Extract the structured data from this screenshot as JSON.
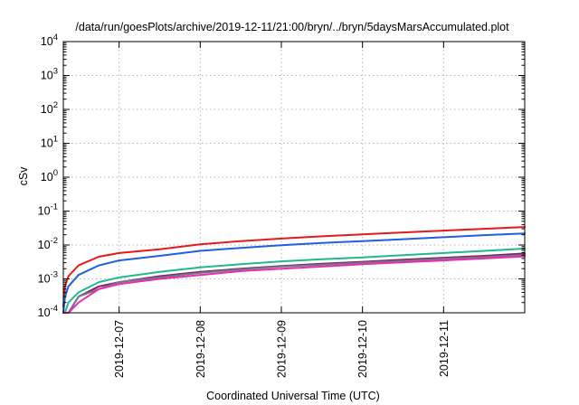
{
  "chart_data": {
    "type": "line",
    "title": "/data/run/goesPlots/archive/2019-12-11/21:00/bryn/../bryn/5daysMarsAccumulated.plot",
    "xlabel": "Coordinated Universal Time (UTC)",
    "ylabel": "cSv",
    "x_axis": "date",
    "xlim": [
      "2019-12-06T07:30",
      "2019-12-12T00:00"
    ],
    "x_ticks": [
      "2019-12-07",
      "2019-12-08",
      "2019-12-09",
      "2019-12-10",
      "2019-12-11"
    ],
    "y_scale": "log",
    "ylim": [
      0.0001,
      10000
    ],
    "y_ticks": [
      {
        "base": "10",
        "exp": "-4"
      },
      {
        "base": "10",
        "exp": "-3"
      },
      {
        "base": "10",
        "exp": "-2"
      },
      {
        "base": "10",
        "exp": "-1"
      },
      {
        "base": "10",
        "exp": "0"
      },
      {
        "base": "10",
        "exp": "1"
      },
      {
        "base": "10",
        "exp": "2"
      },
      {
        "base": "10",
        "exp": "3"
      },
      {
        "base": "10",
        "exp": "4"
      }
    ],
    "grid": true,
    "legend": "none",
    "x": [
      "2019-12-06T07:30",
      "2019-12-06T08:00",
      "2019-12-06T09:00",
      "2019-12-06T12:00",
      "2019-12-06T18:00",
      "2019-12-07T00:00",
      "2019-12-07T12:00",
      "2019-12-08T00:00",
      "2019-12-08T12:00",
      "2019-12-09T00:00",
      "2019-12-09T12:00",
      "2019-12-10T00:00",
      "2019-12-10T12:00",
      "2019-12-11T00:00",
      "2019-12-11T12:00",
      "2019-12-12T00:00"
    ],
    "series": [
      {
        "color": "#e41a1c",
        "values": [
          0.00015,
          0.0006,
          0.0012,
          0.0025,
          0.0045,
          0.0058,
          0.0075,
          0.0105,
          0.013,
          0.0155,
          0.018,
          0.0205,
          0.0235,
          0.0265,
          0.03,
          0.034
        ]
      },
      {
        "color": "#1f5fe0",
        "values": [
          0.0001,
          0.0003,
          0.0006,
          0.0013,
          0.0025,
          0.0035,
          0.0048,
          0.0067,
          0.0082,
          0.0098,
          0.0115,
          0.013,
          0.0148,
          0.017,
          0.0195,
          0.022
        ]
      },
      {
        "color": "#20b890",
        "values": [
          0.0001,
          0.0001,
          0.0002,
          0.0004,
          0.0008,
          0.0011,
          0.0016,
          0.0022,
          0.0027,
          0.0033,
          0.0038,
          0.0043,
          0.005,
          0.0058,
          0.0067,
          0.0078
        ]
      },
      {
        "color": "#8b1f5a",
        "values": [
          0.0001,
          0.0001,
          0.0001,
          0.0003,
          0.0006,
          0.0008,
          0.0012,
          0.0016,
          0.002,
          0.0024,
          0.0028,
          0.0032,
          0.0037,
          0.0042,
          0.0048,
          0.0056
        ]
      },
      {
        "color": "#6b7b8b",
        "values": [
          0.0001,
          0.0001,
          0.0001,
          0.0003,
          0.0005,
          0.0008,
          0.0011,
          0.0015,
          0.0019,
          0.0023,
          0.0026,
          0.003,
          0.0034,
          0.0039,
          0.0044,
          0.0051
        ]
      },
      {
        "color": "#ee2ab4",
        "values": [
          0.0001,
          0.0001,
          0.0001,
          0.0002,
          0.0005,
          0.0007,
          0.001,
          0.0013,
          0.0017,
          0.002,
          0.0023,
          0.0027,
          0.0031,
          0.0035,
          0.004,
          0.0046
        ]
      }
    ]
  }
}
